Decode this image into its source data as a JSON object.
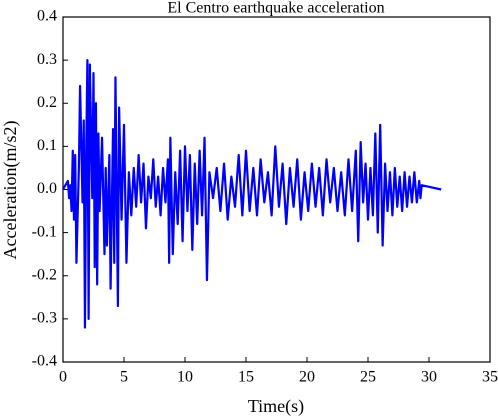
{
  "chart_data": {
    "type": "line",
    "title": "El Centro earthquake acceleration",
    "xlabel": "Time(s)",
    "ylabel": "Acceleration(m/s2)",
    "color": "#0000ff",
    "x": [
      0,
      0.2,
      0.4,
      0.5,
      0.6,
      0.7,
      0.8,
      0.9,
      1.0,
      1.1,
      1.3,
      1.4,
      1.6,
      1.7,
      1.8,
      1.9,
      2.0,
      2.1,
      2.2,
      2.4,
      2.5,
      2.6,
      2.7,
      2.8,
      2.9,
      3.0,
      3.2,
      3.4,
      3.5,
      3.6,
      3.8,
      3.9,
      4.1,
      4.2,
      4.3,
      4.5,
      4.6,
      4.8,
      5.0,
      5.2,
      5.4,
      5.6,
      5.8,
      6.0,
      6.2,
      6.4,
      6.6,
      6.8,
      7.0,
      7.2,
      7.4,
      7.6,
      7.8,
      8.0,
      8.2,
      8.4,
      8.6,
      8.7,
      8.8,
      9.0,
      9.2,
      9.4,
      9.6,
      9.8,
      10.0,
      10.2,
      10.4,
      10.6,
      10.8,
      11.0,
      11.2,
      11.4,
      11.6,
      11.8,
      12.0,
      12.3,
      12.6,
      12.9,
      13.2,
      13.5,
      13.8,
      14.1,
      14.4,
      14.7,
      15.0,
      15.3,
      15.6,
      15.9,
      16.2,
      16.5,
      16.8,
      17.1,
      17.4,
      17.7,
      18.0,
      18.3,
      18.6,
      18.9,
      19.2,
      19.5,
      19.8,
      20.1,
      20.4,
      20.7,
      21.0,
      21.3,
      21.6,
      21.9,
      22.2,
      22.5,
      22.8,
      23.1,
      23.4,
      23.7,
      24.0,
      24.2,
      24.4,
      24.6,
      24.8,
      25.0,
      25.2,
      25.4,
      25.6,
      25.8,
      26.0,
      26.2,
      26.4,
      26.6,
      26.8,
      27.0,
      27.2,
      27.4,
      27.6,
      27.8,
      28.0,
      28.2,
      28.4,
      28.6,
      28.8,
      29.0,
      29.2,
      29.3,
      29.4,
      31.0
    ],
    "values": [
      0,
      0.01,
      0.02,
      -0.02,
      0.01,
      -0.05,
      0.09,
      -0.07,
      0.08,
      -0.17,
      0.05,
      0.24,
      -0.03,
      0.16,
      -0.32,
      0.08,
      0.3,
      -0.3,
      0.29,
      -0.02,
      0.27,
      -0.18,
      0.2,
      -0.22,
      0.13,
      -0.05,
      0.12,
      -0.15,
      0.05,
      -0.13,
      0.08,
      -0.23,
      0.14,
      -0.17,
      0.26,
      -0.27,
      0.19,
      -0.07,
      0.15,
      -0.17,
      0.04,
      -0.06,
      0.05,
      -0.04,
      0.08,
      -0.03,
      0.06,
      -0.09,
      0.03,
      -0.02,
      0.07,
      -0.04,
      0.03,
      -0.06,
      0.05,
      -0.03,
      0.07,
      -0.17,
      0.12,
      -0.15,
      0.04,
      -0.08,
      0.09,
      -0.12,
      0.1,
      -0.05,
      0.08,
      -0.14,
      0.06,
      -0.08,
      0.09,
      -0.06,
      0.12,
      -0.21,
      0.04,
      -0.02,
      0.05,
      -0.05,
      0.06,
      -0.07,
      0.03,
      -0.04,
      0.08,
      -0.06,
      0.09,
      -0.05,
      0.05,
      -0.06,
      0.07,
      -0.03,
      0.04,
      -0.06,
      0.1,
      -0.04,
      0.06,
      -0.08,
      0.05,
      -0.04,
      0.07,
      -0.07,
      0.04,
      -0.05,
      0.06,
      -0.04,
      0.05,
      -0.06,
      0.07,
      -0.03,
      0.05,
      -0.05,
      0.04,
      -0.06,
      0.07,
      -0.05,
      0.09,
      -0.12,
      0.11,
      -0.03,
      0.06,
      -0.07,
      0.05,
      -0.06,
      0.13,
      -0.1,
      0.15,
      -0.13,
      0.06,
      -0.05,
      0.04,
      -0.06,
      0.05,
      -0.04,
      0.03,
      -0.05,
      0.04,
      -0.04,
      0.03,
      -0.03,
      0.04,
      -0.03,
      0.02,
      -0.02,
      0.01,
      0
    ],
    "xlim": [
      0,
      35
    ],
    "xticks": [
      0,
      5,
      10,
      15,
      20,
      25,
      30,
      35
    ],
    "ylim": [
      -0.4,
      0.4
    ],
    "yticks": [
      -0.4,
      -0.3,
      -0.2,
      -0.1,
      {
        "value": 0,
        "label": "0.0"
      },
      0.1,
      0.2,
      0.3,
      0.4
    ]
  }
}
